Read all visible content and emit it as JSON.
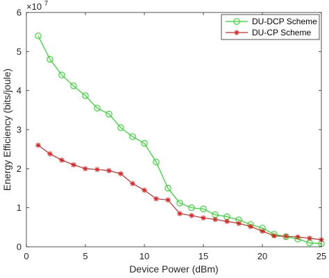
{
  "chart_data": {
    "type": "line",
    "title": "",
    "xlabel": "Device Power (dBm)",
    "ylabel": "Energy Efficiency (bits/joule)",
    "y_multiplier_base": "×10",
    "y_multiplier_exp": "7",
    "xlim": [
      0,
      25
    ],
    "ylim": [
      0,
      6
    ],
    "xticks": [
      0,
      5,
      10,
      15,
      20,
      25
    ],
    "yticks": [
      0,
      1,
      2,
      3,
      4,
      5,
      6
    ],
    "grid": false,
    "legend_position": "top-right",
    "x": [
      1,
      2,
      3,
      4,
      5,
      6,
      7,
      8,
      9,
      10,
      11,
      12,
      13,
      14,
      15,
      16,
      17,
      18,
      19,
      20,
      21,
      22,
      23,
      24,
      25
    ],
    "series": [
      {
        "name": "DU-DCP Scheme",
        "color": "#22dd22",
        "marker": "circle",
        "values": [
          5.4,
          4.8,
          4.4,
          4.12,
          3.87,
          3.55,
          3.4,
          3.05,
          2.82,
          2.65,
          2.17,
          1.5,
          1.12,
          1.0,
          0.97,
          0.82,
          0.77,
          0.69,
          0.57,
          0.48,
          0.32,
          0.26,
          0.2,
          0.1,
          0.08
        ]
      },
      {
        "name": "DU-CP Scheme",
        "color": "#dd2222",
        "marker": "asterisk",
        "values": [
          2.6,
          2.38,
          2.22,
          2.1,
          2.0,
          1.98,
          1.95,
          1.87,
          1.62,
          1.45,
          1.23,
          1.2,
          0.85,
          0.8,
          0.74,
          0.7,
          0.65,
          0.6,
          0.52,
          0.4,
          0.28,
          0.27,
          0.25,
          0.22,
          0.18
        ]
      }
    ]
  }
}
